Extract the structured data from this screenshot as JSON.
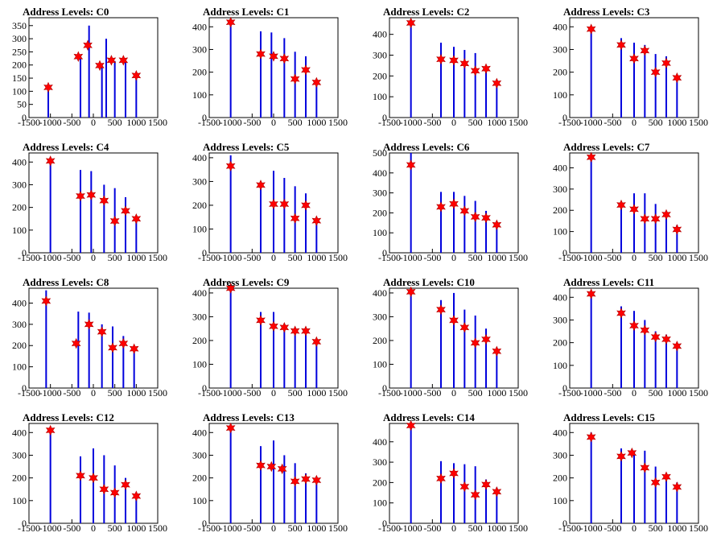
{
  "chart_data": [
    {
      "type": "bar",
      "title": "Address Levels: C0",
      "xlim": [
        -1500,
        1500
      ],
      "ylim": [
        0,
        380
      ],
      "yticks": [
        0,
        50,
        100,
        150,
        200,
        250,
        300,
        350
      ],
      "xticks": [
        -1500,
        -1000,
        -500,
        0,
        500,
        1000,
        1500
      ],
      "x": [
        -1050,
        -300,
        -100,
        200,
        300,
        500,
        750,
        1000
      ],
      "values": [
        115,
        235,
        350,
        200,
        300,
        215,
        215,
        160
      ],
      "markers": [
        {
          "x": -1050,
          "y": 115
        },
        {
          "x": -350,
          "y": 232
        },
        {
          "x": -130,
          "y": 275
        },
        {
          "x": 150,
          "y": 198
        },
        {
          "x": 420,
          "y": 218
        },
        {
          "x": 700,
          "y": 218
        },
        {
          "x": 1000,
          "y": 160
        }
      ]
    },
    {
      "type": "bar",
      "title": "Address Levels: C1",
      "xlim": [
        -1500,
        1500
      ],
      "ylim": [
        0,
        440
      ],
      "yticks": [
        0,
        100,
        200,
        300,
        400
      ],
      "xticks": [
        -1500,
        -1000,
        -500,
        0,
        500,
        1000,
        1500
      ],
      "x": [
        -1000,
        -300,
        -50,
        250,
        500,
        750,
        1000
      ],
      "values": [
        420,
        380,
        375,
        350,
        290,
        270,
        160
      ],
      "markers": [
        {
          "x": -1000,
          "y": 420
        },
        {
          "x": -300,
          "y": 280
        },
        {
          "x": 0,
          "y": 270
        },
        {
          "x": 250,
          "y": 260
        },
        {
          "x": 500,
          "y": 170
        },
        {
          "x": 750,
          "y": 210
        },
        {
          "x": 1000,
          "y": 155
        }
      ]
    },
    {
      "type": "bar",
      "title": "Address Levels: C2",
      "xlim": [
        -1500,
        1500
      ],
      "ylim": [
        0,
        480
      ],
      "yticks": [
        0,
        100,
        200,
        300,
        400
      ],
      "xticks": [
        -1500,
        -1000,
        -500,
        0,
        500,
        1000,
        1500
      ],
      "x": [
        -1000,
        -300,
        0,
        250,
        500,
        750,
        1000
      ],
      "values": [
        460,
        360,
        340,
        325,
        310,
        245,
        175
      ],
      "markers": [
        {
          "x": -1000,
          "y": 455
        },
        {
          "x": -300,
          "y": 280
        },
        {
          "x": 0,
          "y": 275
        },
        {
          "x": 250,
          "y": 260
        },
        {
          "x": 500,
          "y": 225
        },
        {
          "x": 750,
          "y": 235
        },
        {
          "x": 1000,
          "y": 165
        }
      ]
    },
    {
      "type": "bar",
      "title": "Address Levels: C3",
      "xlim": [
        -1500,
        1500
      ],
      "ylim": [
        0,
        440
      ],
      "yticks": [
        0,
        100,
        200,
        300,
        400
      ],
      "xticks": [
        -1500,
        -1000,
        -500,
        0,
        500,
        1000,
        1500
      ],
      "x": [
        -1000,
        -300,
        0,
        250,
        500,
        750,
        1000
      ],
      "values": [
        400,
        350,
        330,
        320,
        280,
        270,
        180
      ],
      "markers": [
        {
          "x": -1000,
          "y": 390
        },
        {
          "x": -300,
          "y": 320
        },
        {
          "x": 0,
          "y": 260
        },
        {
          "x": 250,
          "y": 295
        },
        {
          "x": 500,
          "y": 200
        },
        {
          "x": 750,
          "y": 240
        },
        {
          "x": 1000,
          "y": 175
        }
      ]
    },
    {
      "type": "bar",
      "title": "Address Levels: C4",
      "xlim": [
        -1500,
        1500
      ],
      "ylim": [
        0,
        440
      ],
      "yticks": [
        0,
        100,
        200,
        300,
        400
      ],
      "xticks": [
        -1500,
        -1000,
        -500,
        0,
        500,
        1000,
        1500
      ],
      "x": [
        -1000,
        -300,
        -50,
        250,
        500,
        750,
        1000
      ],
      "values": [
        420,
        365,
        360,
        300,
        285,
        245,
        160
      ],
      "markers": [
        {
          "x": -1000,
          "y": 405
        },
        {
          "x": -300,
          "y": 250
        },
        {
          "x": -50,
          "y": 255
        },
        {
          "x": 250,
          "y": 230
        },
        {
          "x": 500,
          "y": 140
        },
        {
          "x": 750,
          "y": 185
        },
        {
          "x": 1000,
          "y": 150
        }
      ]
    },
    {
      "type": "bar",
      "title": "Address Levels: C5",
      "xlim": [
        -1500,
        1500
      ],
      "ylim": [
        0,
        420
      ],
      "yticks": [
        0,
        100,
        200,
        300,
        400
      ],
      "xticks": [
        -1500,
        -1000,
        -500,
        0,
        500,
        1000,
        1500
      ],
      "x": [
        -1000,
        -300,
        0,
        250,
        500,
        750,
        1000
      ],
      "values": [
        410,
        300,
        345,
        315,
        280,
        250,
        150
      ],
      "markers": [
        {
          "x": -1000,
          "y": 365
        },
        {
          "x": -300,
          "y": 285
        },
        {
          "x": 0,
          "y": 205
        },
        {
          "x": 250,
          "y": 205
        },
        {
          "x": 500,
          "y": 145
        },
        {
          "x": 750,
          "y": 200
        },
        {
          "x": 1000,
          "y": 135
        }
      ]
    },
    {
      "type": "bar",
      "title": "Address Levels: C6",
      "xlim": [
        -1500,
        1500
      ],
      "ylim": [
        0,
        500
      ],
      "yticks": [
        0,
        100,
        200,
        300,
        400,
        500
      ],
      "xticks": [
        -1500,
        -1000,
        -500,
        0,
        500,
        1000,
        1500
      ],
      "x": [
        -1000,
        -300,
        0,
        250,
        500,
        750,
        1000
      ],
      "values": [
        500,
        305,
        305,
        285,
        260,
        210,
        145
      ],
      "markers": [
        {
          "x": -1000,
          "y": 440
        },
        {
          "x": -300,
          "y": 230
        },
        {
          "x": 0,
          "y": 245
        },
        {
          "x": 250,
          "y": 210
        },
        {
          "x": 500,
          "y": 180
        },
        {
          "x": 750,
          "y": 175
        },
        {
          "x": 1000,
          "y": 140
        }
      ]
    },
    {
      "type": "bar",
      "title": "Address Levels: C7",
      "xlim": [
        -1500,
        1500
      ],
      "ylim": [
        0,
        470
      ],
      "yticks": [
        0,
        100,
        200,
        300,
        400
      ],
      "xticks": [
        -1500,
        -1000,
        -500,
        0,
        500,
        1000,
        1500
      ],
      "x": [
        -1000,
        -300,
        0,
        250,
        500,
        750,
        1000
      ],
      "values": [
        460,
        240,
        280,
        280,
        230,
        190,
        130
      ],
      "markers": [
        {
          "x": -1000,
          "y": 450
        },
        {
          "x": -300,
          "y": 225
        },
        {
          "x": 0,
          "y": 205
        },
        {
          "x": 250,
          "y": 160
        },
        {
          "x": 500,
          "y": 160
        },
        {
          "x": 750,
          "y": 180
        },
        {
          "x": 1000,
          "y": 110
        }
      ]
    },
    {
      "type": "bar",
      "title": "Address Levels: C8",
      "xlim": [
        -1500,
        1500
      ],
      "ylim": [
        0,
        470
      ],
      "yticks": [
        0,
        100,
        200,
        300,
        400
      ],
      "xticks": [
        -1500,
        -1000,
        -500,
        0,
        500,
        1000,
        1500
      ],
      "x": [
        -1100,
        -350,
        -100,
        200,
        450,
        700,
        950
      ],
      "values": [
        460,
        360,
        355,
        300,
        290,
        245,
        190
      ],
      "markers": [
        {
          "x": -1100,
          "y": 410
        },
        {
          "x": -400,
          "y": 210
        },
        {
          "x": -100,
          "y": 300
        },
        {
          "x": 200,
          "y": 265
        },
        {
          "x": 450,
          "y": 190
        },
        {
          "x": 700,
          "y": 210
        },
        {
          "x": 950,
          "y": 185
        }
      ]
    },
    {
      "type": "bar",
      "title": "Address Levels: C9",
      "xlim": [
        -1500,
        1500
      ],
      "ylim": [
        0,
        420
      ],
      "yticks": [
        0,
        100,
        200,
        300,
        400
      ],
      "xticks": [
        -1500,
        -1000,
        -500,
        0,
        500,
        1000,
        1500
      ],
      "x": [
        -1000,
        -300,
        0,
        250,
        500,
        750,
        1000
      ],
      "values": [
        420,
        320,
        320,
        270,
        250,
        250,
        200
      ],
      "markers": [
        {
          "x": -1000,
          "y": 420
        },
        {
          "x": -300,
          "y": 285
        },
        {
          "x": 0,
          "y": 260
        },
        {
          "x": 250,
          "y": 255
        },
        {
          "x": 500,
          "y": 240
        },
        {
          "x": 750,
          "y": 240
        },
        {
          "x": 1000,
          "y": 195
        }
      ]
    },
    {
      "type": "bar",
      "title": "Address Levels: C10",
      "xlim": [
        -1500,
        1500
      ],
      "ylim": [
        0,
        420
      ],
      "yticks": [
        0,
        100,
        200,
        300,
        400
      ],
      "xticks": [
        -1500,
        -1000,
        -500,
        0,
        500,
        1000,
        1500
      ],
      "x": [
        -1000,
        -300,
        0,
        250,
        500,
        750,
        1000
      ],
      "values": [
        410,
        370,
        400,
        330,
        305,
        250,
        170
      ],
      "markers": [
        {
          "x": -1000,
          "y": 405
        },
        {
          "x": -300,
          "y": 330
        },
        {
          "x": 0,
          "y": 285
        },
        {
          "x": 250,
          "y": 255
        },
        {
          "x": 500,
          "y": 190
        },
        {
          "x": 750,
          "y": 205
        },
        {
          "x": 1000,
          "y": 155
        }
      ]
    },
    {
      "type": "bar",
      "title": "Address Levels: C11",
      "xlim": [
        -1500,
        1500
      ],
      "ylim": [
        0,
        440
      ],
      "yticks": [
        0,
        100,
        200,
        300,
        400
      ],
      "xticks": [
        -1500,
        -1000,
        -500,
        0,
        500,
        1000,
        1500
      ],
      "x": [
        -1000,
        -300,
        0,
        250,
        500,
        750,
        1000
      ],
      "values": [
        420,
        360,
        340,
        300,
        250,
        235,
        195
      ],
      "markers": [
        {
          "x": -1000,
          "y": 415
        },
        {
          "x": -300,
          "y": 330
        },
        {
          "x": 0,
          "y": 275
        },
        {
          "x": 250,
          "y": 255
        },
        {
          "x": 500,
          "y": 225
        },
        {
          "x": 750,
          "y": 215
        },
        {
          "x": 1000,
          "y": 185
        }
      ]
    },
    {
      "type": "bar",
      "title": "Address Levels: C12",
      "xlim": [
        -1500,
        1500
      ],
      "ylim": [
        0,
        440
      ],
      "yticks": [
        0,
        100,
        200,
        300,
        400
      ],
      "xticks": [
        -1500,
        -1000,
        -500,
        0,
        500,
        1000,
        1500
      ],
      "x": [
        -1000,
        -300,
        0,
        250,
        500,
        750,
        1000
      ],
      "values": [
        420,
        295,
        330,
        300,
        255,
        200,
        135
      ],
      "markers": [
        {
          "x": -1000,
          "y": 410
        },
        {
          "x": -300,
          "y": 210
        },
        {
          "x": 0,
          "y": 200
        },
        {
          "x": 250,
          "y": 150
        },
        {
          "x": 500,
          "y": 135
        },
        {
          "x": 750,
          "y": 170
        },
        {
          "x": 1000,
          "y": 120
        }
      ]
    },
    {
      "type": "bar",
      "title": "Address Levels: C13",
      "xlim": [
        -1500,
        1500
      ],
      "ylim": [
        0,
        440
      ],
      "yticks": [
        0,
        100,
        200,
        300,
        400
      ],
      "xticks": [
        -1500,
        -1000,
        -500,
        0,
        500,
        1000,
        1500
      ],
      "x": [
        -1000,
        -300,
        0,
        250,
        500,
        750,
        1000
      ],
      "values": [
        430,
        340,
        365,
        300,
        265,
        220,
        205
      ],
      "markers": [
        {
          "x": -1000,
          "y": 420
        },
        {
          "x": -300,
          "y": 255
        },
        {
          "x": -50,
          "y": 250
        },
        {
          "x": 200,
          "y": 240
        },
        {
          "x": 500,
          "y": 185
        },
        {
          "x": 750,
          "y": 195
        },
        {
          "x": 1000,
          "y": 190
        }
      ]
    },
    {
      "type": "bar",
      "title": "Address Levels: C14",
      "xlim": [
        -1500,
        1500
      ],
      "ylim": [
        0,
        490
      ],
      "yticks": [
        0,
        100,
        200,
        300,
        400
      ],
      "xticks": [
        -1500,
        -1000,
        -500,
        0,
        500,
        1000,
        1500
      ],
      "x": [
        -1000,
        -300,
        0,
        250,
        500,
        750,
        1000
      ],
      "values": [
        480,
        305,
        295,
        290,
        280,
        215,
        175
      ],
      "markers": [
        {
          "x": -1000,
          "y": 480
        },
        {
          "x": -300,
          "y": 220
        },
        {
          "x": 0,
          "y": 245
        },
        {
          "x": 250,
          "y": 180
        },
        {
          "x": 500,
          "y": 140
        },
        {
          "x": 750,
          "y": 190
        },
        {
          "x": 1000,
          "y": 155
        }
      ]
    },
    {
      "type": "bar",
      "title": "Address Levels: C15",
      "xlim": [
        -1500,
        1500
      ],
      "ylim": [
        0,
        440
      ],
      "yticks": [
        0,
        100,
        200,
        300,
        400
      ],
      "xticks": [
        -1500,
        -1000,
        -500,
        0,
        500,
        1000,
        1500
      ],
      "x": [
        -1000,
        -300,
        0,
        250,
        500,
        750,
        1000
      ],
      "values": [
        400,
        330,
        320,
        320,
        250,
        220,
        180
      ],
      "markers": [
        {
          "x": -1000,
          "y": 380
        },
        {
          "x": -300,
          "y": 295
        },
        {
          "x": -50,
          "y": 310
        },
        {
          "x": 250,
          "y": 245
        },
        {
          "x": 500,
          "y": 180
        },
        {
          "x": 750,
          "y": 205
        },
        {
          "x": 1000,
          "y": 160
        }
      ]
    }
  ],
  "colors": {
    "bar": "#0000dd",
    "marker": "#ff0000",
    "axis": "#000000"
  }
}
